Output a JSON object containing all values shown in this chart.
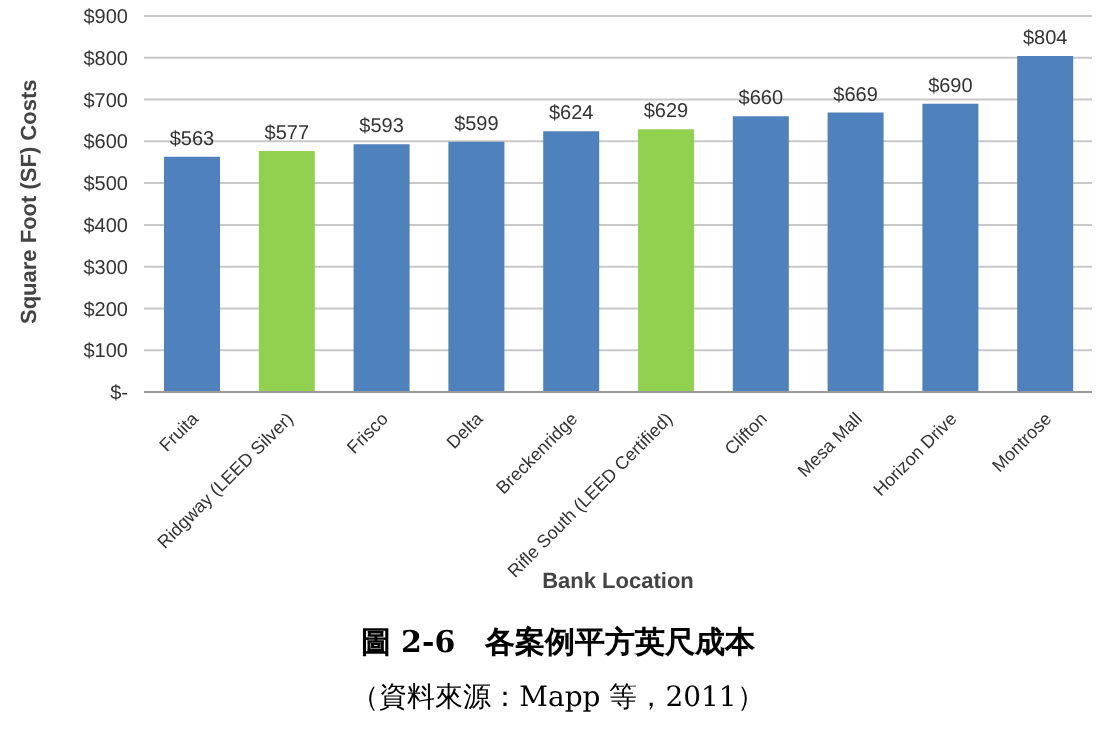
{
  "chart_data": {
    "type": "bar",
    "xlabel": "Bank Location",
    "ylabel": "Square Foot (SF) Costs",
    "categories": [
      "Fruita",
      "Ridgway (LEED Silver)",
      "Frisco",
      "Delta",
      "Breckenridge",
      "Rifle South (LEED Certified)",
      "Clifton",
      "Mesa Mall",
      "Horizon Drive",
      "Montrose"
    ],
    "values": [
      563,
      577,
      593,
      599,
      624,
      629,
      660,
      669,
      690,
      804
    ],
    "colors": [
      "#4f81bd",
      "#92d050",
      "#4f81bd",
      "#4f81bd",
      "#4f81bd",
      "#92d050",
      "#4f81bd",
      "#4f81bd",
      "#4f81bd",
      "#4f81bd"
    ],
    "value_labels": [
      "$563",
      "$577",
      "$593",
      "$599",
      "$624",
      "$629",
      "$660",
      "$669",
      "$690",
      "$804"
    ],
    "ylim": [
      0,
      900
    ],
    "yticks": [
      {
        "value": 0,
        "label": "$-"
      },
      {
        "value": 100,
        "label": "$100"
      },
      {
        "value": 200,
        "label": "$200"
      },
      {
        "value": 300,
        "label": "$300"
      },
      {
        "value": 400,
        "label": "$400"
      },
      {
        "value": 500,
        "label": "$500"
      },
      {
        "value": 600,
        "label": "$600"
      },
      {
        "value": 700,
        "label": "$700"
      },
      {
        "value": 800,
        "label": "$800"
      },
      {
        "value": 900,
        "label": "$900"
      }
    ],
    "grid": "y",
    "annotations": [
      "圖 2-6　各案例平方英尺成本",
      "（資料來源：Mapp 等，2011）"
    ]
  }
}
